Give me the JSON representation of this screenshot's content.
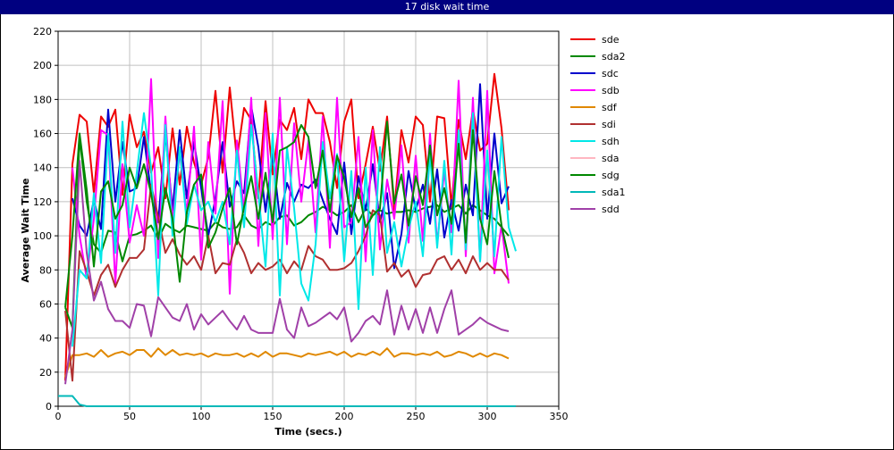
{
  "window": {
    "title": "17 disk wait time"
  },
  "chart_data": {
    "type": "line",
    "title": "17 disk wait time",
    "xlabel": "Time (secs.)",
    "ylabel": "Average Wait Time",
    "xlim": [
      0,
      350
    ],
    "ylim": [
      0,
      220
    ],
    "xticks": [
      0,
      50,
      100,
      150,
      200,
      250,
      300,
      350
    ],
    "yticks": [
      0,
      20,
      40,
      60,
      80,
      100,
      120,
      140,
      160,
      180,
      200,
      220
    ],
    "grid": true,
    "legend_position": "right",
    "series": [
      {
        "name": "sde",
        "color": "#ee0000",
        "x": [
          5,
          10,
          15,
          20,
          25,
          30,
          35,
          40,
          45,
          50,
          55,
          60,
          65,
          70,
          75,
          80,
          85,
          90,
          95,
          100,
          105,
          110,
          115,
          120,
          125,
          130,
          135,
          140,
          145,
          150,
          155,
          160,
          165,
          170,
          175,
          180,
          185,
          190,
          195,
          200,
          205,
          210,
          215,
          220,
          225,
          230,
          235,
          240,
          245,
          250,
          255,
          260,
          265,
          270,
          275,
          280,
          285,
          290,
          295,
          300,
          305,
          310,
          315
        ],
        "y": [
          15,
          142,
          171,
          167,
          125,
          170,
          164,
          174,
          124,
          171,
          152,
          161,
          137,
          152,
          122,
          163,
          130,
          164,
          143,
          130,
          146,
          185,
          137,
          187,
          145,
          175,
          168,
          122,
          179,
          136,
          168,
          162,
          175,
          145,
          180,
          172,
          172,
          155,
          128,
          167,
          180,
          122,
          142,
          164,
          138,
          170,
          115,
          162,
          143,
          170,
          165,
          120,
          170,
          169,
          117,
          168,
          145,
          174,
          150,
          154,
          195,
          163,
          115
        ]
      },
      {
        "name": "sda2",
        "color": "#008800",
        "x": [
          5,
          10,
          15,
          20,
          25,
          30,
          35,
          40,
          45,
          50,
          55,
          60,
          65,
          70,
          75,
          80,
          85,
          90,
          95,
          100,
          105,
          110,
          115,
          120,
          125,
          130,
          135,
          140,
          145,
          150,
          155,
          160,
          165,
          170,
          175,
          180,
          185,
          190,
          195,
          200,
          205,
          210,
          215,
          220,
          225,
          230,
          235,
          240,
          245,
          250,
          255,
          260,
          265,
          270,
          275,
          280,
          285,
          290,
          295,
          300,
          305,
          310,
          315
        ],
        "y": [
          58,
          46,
          158,
          120,
          95,
          90,
          103,
          102,
          85,
          100,
          101,
          103,
          106,
          98,
          107,
          104,
          102,
          106,
          105,
          104,
          103,
          108,
          105,
          104,
          105,
          112,
          106,
          104,
          108,
          106,
          111,
          112,
          106,
          108,
          112,
          114,
          117,
          115,
          112,
          114,
          118,
          108,
          116,
          112,
          115,
          113,
          114,
          114,
          115,
          114,
          116,
          117,
          118,
          114,
          116,
          118,
          113,
          118,
          115,
          112,
          110,
          105,
          100
        ]
      },
      {
        "name": "sdc",
        "color": "#0000cc",
        "x": [
          10,
          15,
          20,
          25,
          30,
          35,
          40,
          45,
          50,
          55,
          60,
          65,
          70,
          75,
          80,
          85,
          90,
          95,
          100,
          105,
          110,
          115,
          120,
          125,
          130,
          135,
          140,
          145,
          150,
          155,
          160,
          165,
          170,
          175,
          180,
          185,
          190,
          195,
          200,
          205,
          210,
          215,
          220,
          225,
          230,
          235,
          240,
          245,
          250,
          255,
          260,
          265,
          270,
          275,
          280,
          285,
          290,
          295,
          300,
          305,
          310,
          315
        ],
        "y": [
          122,
          106,
          100,
          121,
          104,
          174,
          120,
          155,
          126,
          128,
          158,
          125,
          108,
          160,
          115,
          162,
          122,
          155,
          128,
          100,
          122,
          155,
          117,
          132,
          125,
          176,
          152,
          114,
          148,
          110,
          131,
          120,
          130,
          128,
          133,
          121,
          110,
          101,
          143,
          101,
          135,
          115,
          142,
          108,
          125,
          81,
          101,
          138,
          115,
          130,
          107,
          139,
          99,
          121,
          103,
          130,
          112,
          189,
          110,
          160,
          119,
          129
        ]
      },
      {
        "name": "sdb",
        "color": "#ff00ff",
        "x": [
          10,
          15,
          20,
          25,
          30,
          35,
          40,
          45,
          50,
          55,
          60,
          65,
          70,
          75,
          80,
          85,
          90,
          95,
          100,
          105,
          110,
          115,
          120,
          125,
          130,
          135,
          140,
          145,
          150,
          155,
          160,
          165,
          170,
          175,
          180,
          185,
          190,
          195,
          200,
          205,
          210,
          215,
          220,
          225,
          230,
          235,
          240,
          245,
          250,
          255,
          260,
          265,
          270,
          275,
          280,
          285,
          290,
          295,
          300,
          305,
          310,
          315
        ],
        "y": [
          140,
          100,
          75,
          110,
          162,
          159,
          72,
          142,
          96,
          118,
          100,
          192,
          87,
          170,
          108,
          149,
          113,
          164,
          86,
          155,
          113,
          179,
          66,
          156,
          114,
          181,
          94,
          172,
          98,
          181,
          95,
          166,
          120,
          156,
          102,
          170,
          93,
          181,
          105,
          108,
          158,
          85,
          162,
          92,
          133,
          110,
          153,
          96,
          147,
          97,
          160,
          95,
          138,
          102,
          191,
          88,
          181,
          85,
          185,
          78,
          106,
          72
        ]
      },
      {
        "name": "sdf",
        "color": "#e08800",
        "x": [
          5,
          10,
          15,
          20,
          25,
          30,
          35,
          40,
          45,
          50,
          55,
          60,
          65,
          70,
          75,
          80,
          85,
          90,
          95,
          100,
          105,
          110,
          115,
          120,
          125,
          130,
          135,
          140,
          145,
          150,
          155,
          160,
          165,
          170,
          175,
          180,
          185,
          190,
          195,
          200,
          205,
          210,
          215,
          220,
          225,
          230,
          235,
          240,
          245,
          250,
          255,
          260,
          265,
          270,
          275,
          280,
          285,
          290,
          295,
          300,
          305,
          310,
          315
        ],
        "y": [
          17,
          30,
          30,
          31,
          29,
          33,
          29,
          31,
          32,
          30,
          33,
          33,
          29,
          34,
          30,
          33,
          30,
          31,
          30,
          31,
          29,
          31,
          30,
          30,
          31,
          29,
          31,
          29,
          32,
          29,
          31,
          31,
          30,
          29,
          31,
          30,
          31,
          32,
          30,
          32,
          29,
          31,
          30,
          32,
          30,
          34,
          29,
          31,
          31,
          30,
          31,
          30,
          32,
          29,
          30,
          32,
          31,
          29,
          31,
          29,
          31,
          30,
          28
        ]
      },
      {
        "name": "sdi",
        "color": "#b03030",
        "x": [
          5,
          10,
          15,
          20,
          25,
          30,
          35,
          40,
          45,
          50,
          55,
          60,
          65,
          70,
          75,
          80,
          85,
          90,
          95,
          100,
          105,
          110,
          115,
          120,
          125,
          130,
          135,
          140,
          145,
          150,
          155,
          160,
          165,
          170,
          175,
          180,
          185,
          190,
          195,
          200,
          205,
          210,
          215,
          220,
          225,
          230,
          235,
          240,
          245,
          250,
          255,
          260,
          265,
          270,
          275,
          280,
          285,
          290,
          295,
          300,
          305,
          310,
          315
        ],
        "y": [
          56,
          15,
          91,
          79,
          65,
          77,
          83,
          70,
          80,
          87,
          87,
          92,
          130,
          111,
          90,
          98,
          89,
          83,
          88,
          80,
          100,
          78,
          84,
          83,
          98,
          90,
          78,
          84,
          80,
          82,
          86,
          78,
          85,
          80,
          94,
          88,
          86,
          80,
          80,
          81,
          84,
          91,
          100,
          115,
          112,
          79,
          84,
          76,
          80,
          70,
          77,
          78,
          86,
          88,
          80,
          86,
          78,
          88,
          80,
          84,
          80,
          80,
          74
        ]
      },
      {
        "name": "sdh",
        "color": "#00e8e8",
        "x": [
          10,
          15,
          20,
          25,
          30,
          35,
          40,
          45,
          50,
          55,
          60,
          65,
          70,
          75,
          80,
          85,
          90,
          95,
          100,
          105,
          110,
          115,
          120,
          125,
          130,
          135,
          140,
          145,
          150,
          155,
          160,
          165,
          170,
          175,
          180,
          185,
          190,
          195,
          200,
          205,
          210,
          215,
          220,
          225,
          230,
          235,
          240,
          245,
          250,
          255,
          260,
          265,
          270,
          275,
          280,
          285,
          290,
          295,
          300,
          305,
          310,
          315,
          320
        ],
        "y": [
          35,
          80,
          75,
          125,
          84,
          160,
          90,
          167,
          105,
          137,
          172,
          140,
          65,
          165,
          100,
          152,
          107,
          130,
          115,
          120,
          108,
          120,
          95,
          150,
          105,
          165,
          125,
          82,
          160,
          65,
          152,
          116,
          72,
          62,
          95,
          155,
          122,
          148,
          85,
          138,
          57,
          140,
          77,
          152,
          90,
          108,
          82,
          104,
          120,
          88,
          148,
          93,
          144,
          89,
          162,
          92,
          172,
          85,
          150,
          88,
          158,
          105,
          91
        ]
      },
      {
        "name": "sda",
        "color": "#ffb6c1",
        "x": [],
        "y": []
      },
      {
        "name": "sdg",
        "color": "#008800",
        "x": [
          5,
          10,
          15,
          20,
          25,
          30,
          35,
          40,
          45,
          50,
          55,
          60,
          65,
          70,
          75,
          80,
          85,
          90,
          95,
          100,
          105,
          110,
          115,
          120,
          125,
          130,
          135,
          140,
          145,
          150,
          155,
          160,
          165,
          170,
          175,
          180,
          185,
          190,
          195,
          200,
          205,
          210,
          215,
          220,
          225,
          230,
          235,
          240,
          245,
          250,
          255,
          260,
          265,
          270,
          275,
          280,
          285,
          290,
          295,
          300,
          305,
          310,
          315
        ],
        "y": [
          58,
          100,
          160,
          127,
          82,
          126,
          132,
          110,
          118,
          140,
          128,
          142,
          125,
          98,
          128,
          110,
          73,
          114,
          130,
          136,
          93,
          102,
          116,
          128,
          95,
          117,
          135,
          110,
          137,
          108,
          150,
          152,
          155,
          165,
          158,
          128,
          150,
          114,
          147,
          134,
          111,
          128,
          105,
          112,
          116,
          167,
          119,
          136,
          106,
          135,
          118,
          153,
          112,
          128,
          107,
          154,
          96,
          162,
          110,
          95,
          138,
          106,
          87
        ]
      },
      {
        "name": "sda1",
        "color": "#00b8b8",
        "x": [
          0,
          5,
          10,
          15,
          20,
          320
        ],
        "y": [
          6,
          6,
          6,
          1,
          0,
          0
        ]
      },
      {
        "name": "sdd",
        "color": "#a040a8",
        "x": [
          5,
          10,
          15,
          20,
          25,
          30,
          35,
          40,
          45,
          50,
          55,
          60,
          65,
          70,
          75,
          80,
          85,
          90,
          95,
          100,
          105,
          110,
          115,
          120,
          125,
          130,
          135,
          140,
          145,
          150,
          155,
          160,
          165,
          170,
          175,
          180,
          185,
          190,
          195,
          200,
          205,
          210,
          215,
          220,
          225,
          230,
          235,
          240,
          245,
          250,
          255,
          260,
          265,
          270,
          275,
          280,
          285,
          290,
          295,
          300,
          305,
          310,
          315
        ],
        "y": [
          13,
          45,
          144,
          90,
          62,
          73,
          57,
          50,
          50,
          46,
          60,
          59,
          41,
          64,
          58,
          52,
          50,
          60,
          45,
          54,
          48,
          52,
          56,
          50,
          45,
          53,
          45,
          43,
          43,
          43,
          63,
          45,
          40,
          58,
          47,
          49,
          52,
          55,
          51,
          58,
          38,
          43,
          50,
          53,
          48,
          68,
          42,
          59,
          45,
          57,
          43,
          58,
          43,
          57,
          68,
          42,
          45,
          48,
          52,
          49,
          47,
          45,
          44
        ]
      }
    ]
  }
}
